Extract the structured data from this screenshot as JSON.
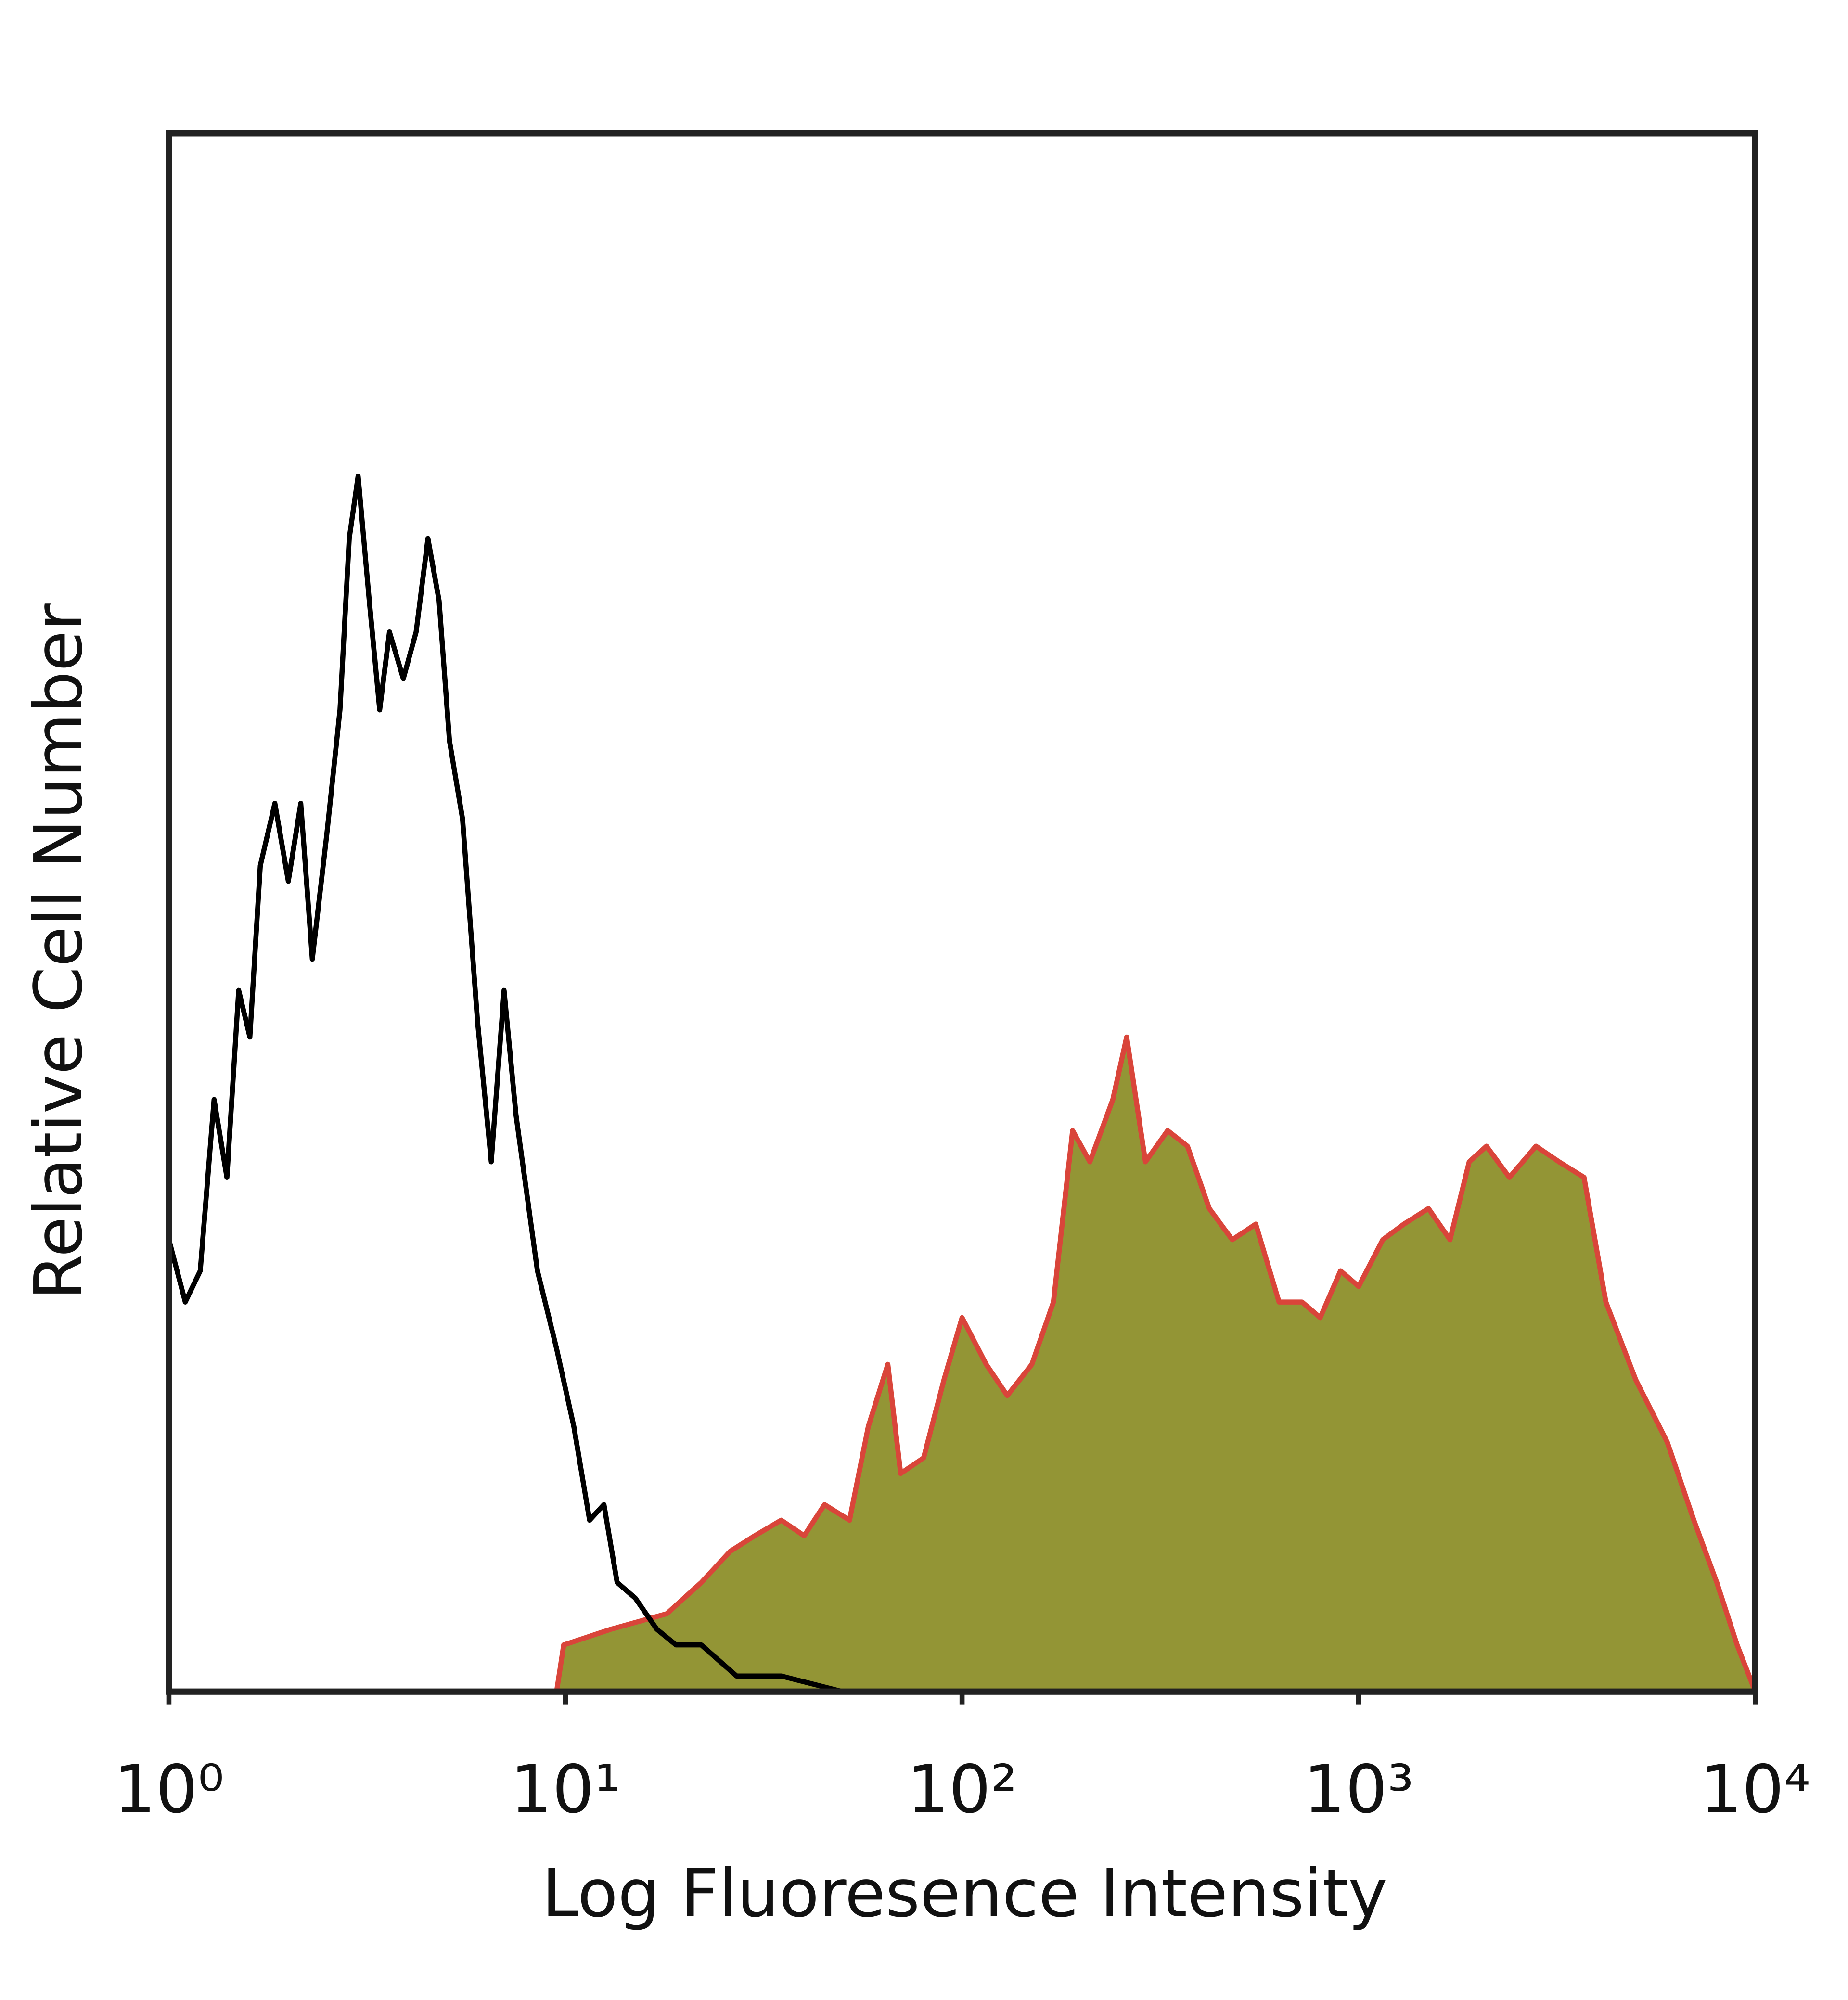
{
  "chart_data": {
    "type": "histogram-overlay",
    "xlabel": "Log Fluoresence Intensity",
    "ylabel": "Relative Cell Number",
    "xscale": "log",
    "xlim": [
      1,
      10000
    ],
    "xticks": [
      {
        "value": 1,
        "label": "10⁰"
      },
      {
        "value": 10,
        "label": "10¹"
      },
      {
        "value": 100,
        "label": "10²"
      },
      {
        "value": 1000,
        "label": "10³"
      },
      {
        "value": 10000,
        "label": "10⁴"
      }
    ],
    "ylim": [
      0,
      100
    ],
    "series": [
      {
        "fill": "#939535",
        "color": "#d9453a",
        "x": [
          1,
          9.5,
          9.9,
          13,
          18,
          22,
          26,
          30,
          35,
          40,
          45,
          52,
          58,
          65,
          70,
          80,
          90,
          100,
          115,
          130,
          150,
          170,
          190,
          210,
          240,
          260,
          290,
          330,
          370,
          420,
          480,
          550,
          630,
          720,
          800,
          900,
          1000,
          1150,
          1300,
          1500,
          1700,
          1900,
          2100,
          2400,
          2800,
          3200,
          3700,
          4200,
          5000,
          6000,
          7000,
          8000,
          9000,
          10000
        ],
        "values": [
          0,
          0,
          3,
          4,
          5,
          7,
          9,
          10,
          11,
          10,
          12,
          11,
          17,
          21,
          14,
          15,
          20,
          24,
          21,
          19,
          21,
          25,
          36,
          34,
          38,
          42,
          34,
          36,
          35,
          31,
          29,
          30,
          25,
          25,
          24,
          27,
          26,
          29,
          30,
          31,
          29,
          34,
          35,
          33,
          35,
          34,
          33,
          25,
          20,
          16,
          11,
          7,
          3,
          0
        ]
      },
      {
        "color": "#000000",
        "x": [
          1,
          1.1,
          1.2,
          1.3,
          1.4,
          1.5,
          1.6,
          1.7,
          1.85,
          2,
          2.15,
          2.3,
          2.5,
          2.7,
          2.85,
          3,
          3.2,
          3.4,
          3.6,
          3.9,
          4.2,
          4.5,
          4.8,
          5.1,
          5.5,
          6,
          6.5,
          7,
          7.5,
          8.5,
          9.5,
          10.5,
          11.5,
          12.5,
          13.5,
          15,
          17,
          19,
          22,
          27,
          35,
          50,
          60
        ],
        "values": [
          29,
          25,
          27,
          38,
          33,
          45,
          42,
          53,
          57,
          52,
          57,
          47,
          55,
          63,
          74,
          78,
          70,
          63,
          68,
          65,
          68,
          74,
          70,
          61,
          56,
          43,
          34,
          45,
          37,
          27,
          22,
          17,
          11,
          12,
          7,
          6,
          4,
          3,
          3,
          1,
          1,
          0,
          0
        ]
      }
    ]
  }
}
